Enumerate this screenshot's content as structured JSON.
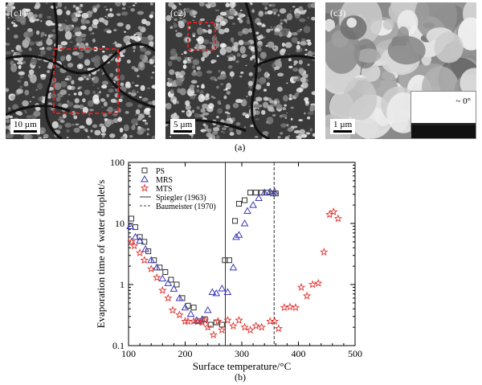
{
  "figure": {
    "panel_a_caption": "(a)",
    "panel_b_caption": "(b)",
    "micrographs": [
      {
        "tag": "(c1)",
        "scale": "10 µm"
      },
      {
        "tag": "(c2)",
        "scale": "5 µm"
      },
      {
        "tag": "(c3)",
        "scale": "1 µm",
        "inset_label": "~ 0°"
      }
    ]
  },
  "chart_data": {
    "type": "scatter",
    "xlabel": "Surface temperature/°C",
    "ylabel": "Evaporation time of water droplet/s",
    "xlim": [
      100,
      500
    ],
    "ylim": [
      0.1,
      100
    ],
    "y_scale": "log",
    "x_ticks": [
      100,
      200,
      300,
      400,
      500
    ],
    "y_ticks": [
      0.1,
      1,
      10,
      100
    ],
    "legend_position": "top-left",
    "series": [
      {
        "name": "PS",
        "marker": "square",
        "color": "#333333",
        "points": [
          [
            105,
            12
          ],
          [
            112,
            8.7
          ],
          [
            120,
            6
          ],
          [
            128,
            5
          ],
          [
            135,
            3.5
          ],
          [
            145,
            2.5
          ],
          [
            155,
            1.9
          ],
          [
            165,
            1.6
          ],
          [
            175,
            1.2
          ],
          [
            185,
            1.0
          ],
          [
            195,
            0.6
          ],
          [
            205,
            0.45
          ],
          [
            215,
            0.42
          ],
          [
            225,
            0.25
          ],
          [
            235,
            0.27
          ],
          [
            245,
            0.22
          ],
          [
            255,
            0.24
          ],
          [
            265,
            0.22
          ],
          [
            270,
            2.5
          ],
          [
            278,
            2.5
          ],
          [
            288,
            11
          ],
          [
            295,
            21
          ],
          [
            305,
            24
          ],
          [
            315,
            32
          ],
          [
            325,
            32
          ],
          [
            335,
            32
          ],
          [
            345,
            32
          ],
          [
            355,
            31
          ],
          [
            360,
            31
          ]
        ]
      },
      {
        "name": "MRS",
        "marker": "triangle",
        "color": "#3a3ab8",
        "points": [
          [
            103,
            9
          ],
          [
            112,
            6
          ],
          [
            120,
            5.2
          ],
          [
            130,
            3.8
          ],
          [
            140,
            2.5
          ],
          [
            150,
            1.9
          ],
          [
            160,
            1.25
          ],
          [
            170,
            1.05
          ],
          [
            180,
            0.85
          ],
          [
            190,
            0.6
          ],
          [
            200,
            0.42
          ],
          [
            210,
            0.33
          ],
          [
            220,
            0.26
          ],
          [
            230,
            0.27
          ],
          [
            240,
            0.38
          ],
          [
            248,
            0.75
          ],
          [
            255,
            0.72
          ],
          [
            265,
            0.86
          ],
          [
            275,
            0.75
          ],
          [
            285,
            1.9
          ],
          [
            290,
            6
          ],
          [
            295,
            6.5
          ],
          [
            305,
            10
          ],
          [
            310,
            16
          ],
          [
            320,
            20
          ],
          [
            330,
            26
          ],
          [
            340,
            32
          ],
          [
            350,
            33
          ],
          [
            358,
            33
          ]
        ]
      },
      {
        "name": "MTS",
        "marker": "star",
        "color": "#e0302a",
        "points": [
          [
            105,
            5
          ],
          [
            110,
            4.3
          ],
          [
            120,
            3.3
          ],
          [
            128,
            2.5
          ],
          [
            140,
            1.8
          ],
          [
            150,
            1.3
          ],
          [
            160,
            0.8
          ],
          [
            170,
            0.6
          ],
          [
            178,
            0.38
          ],
          [
            190,
            0.32
          ],
          [
            200,
            0.25
          ],
          [
            205,
            0.25
          ],
          [
            215,
            0.25
          ],
          [
            222,
            0.25
          ],
          [
            230,
            0.24
          ],
          [
            235,
            0.26
          ],
          [
            240,
            0.2
          ],
          [
            250,
            0.15
          ],
          [
            258,
            0.25
          ],
          [
            265,
            0.18
          ],
          [
            275,
            0.26
          ],
          [
            285,
            0.21
          ],
          [
            295,
            0.26
          ],
          [
            305,
            0.2
          ],
          [
            315,
            0.18
          ],
          [
            325,
            0.21
          ],
          [
            335,
            0.2
          ],
          [
            350,
            0.25
          ],
          [
            358,
            0.25
          ],
          [
            365,
            0.19
          ],
          [
            375,
            0.42
          ],
          [
            385,
            0.43
          ],
          [
            395,
            0.42
          ],
          [
            405,
            0.9
          ],
          [
            415,
            0.65
          ],
          [
            425,
            1.0
          ],
          [
            435,
            1.05
          ],
          [
            445,
            3.4
          ],
          [
            455,
            14
          ],
          [
            462,
            15.5
          ],
          [
            470,
            12
          ]
        ]
      }
    ],
    "reference_lines": [
      {
        "name": "Spiegler (1963)",
        "x": 271,
        "style": "solid"
      },
      {
        "name": "Baumeister (1970)",
        "x": 357,
        "style": "dashed"
      }
    ]
  }
}
